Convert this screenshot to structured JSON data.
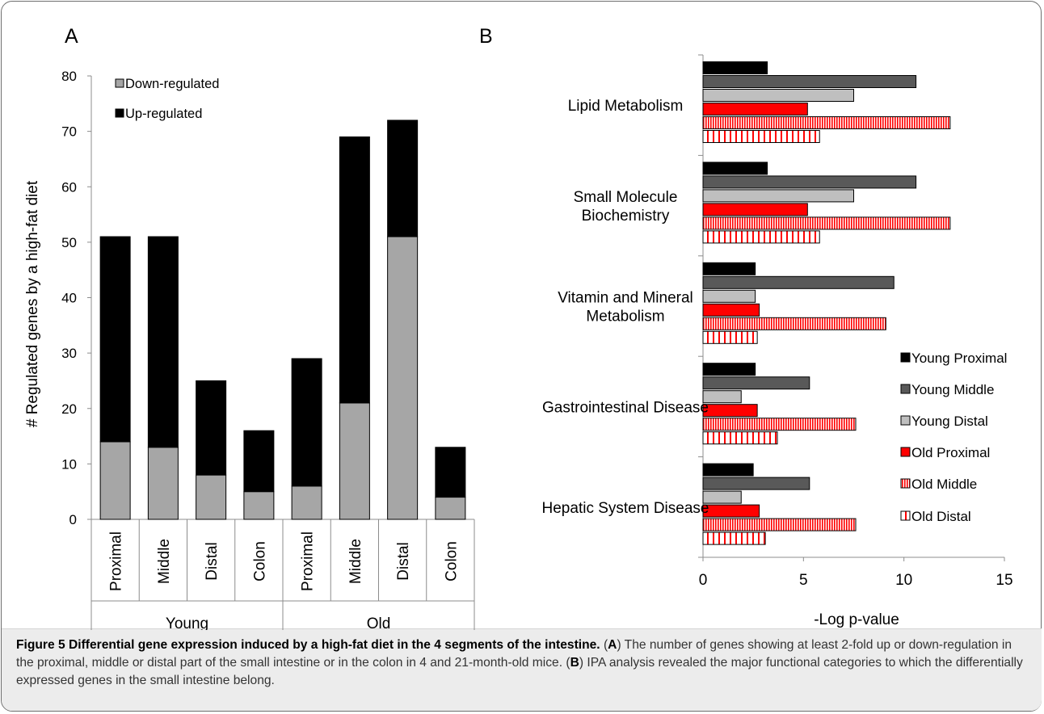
{
  "panels": {
    "a_label": "A",
    "b_label": "B"
  },
  "chart_data": [
    {
      "type": "bar",
      "stacked": true,
      "categories": [
        "Proximal",
        "Middle",
        "Distal",
        "Colon",
        "Proximal",
        "Middle",
        "Distal",
        "Colon"
      ],
      "groups": [
        {
          "label": "Young",
          "categories": [
            "Proximal",
            "Middle",
            "Distal",
            "Colon"
          ]
        },
        {
          "label": "Old",
          "categories": [
            "Proximal",
            "Middle",
            "Distal",
            "Colon"
          ]
        }
      ],
      "series": [
        {
          "name": "Down-regulated",
          "color": "#a6a6a6",
          "values": [
            14,
            13,
            8,
            5,
            6,
            21,
            51,
            4
          ]
        },
        {
          "name": "Up-regulated",
          "color": "#000000",
          "values": [
            37,
            38,
            17,
            11,
            23,
            48,
            21,
            9
          ]
        }
      ],
      "totals": [
        51,
        51,
        25,
        16,
        29,
        69,
        72,
        13
      ],
      "ylabel": "# Regulated genes by a high-fat diet",
      "xlabel": "",
      "ylim": [
        0,
        80
      ],
      "yticks": [
        0,
        10,
        20,
        30,
        40,
        50,
        60,
        70,
        80
      ],
      "grid": false,
      "legend_position": "top-left"
    },
    {
      "type": "bar",
      "orientation": "horizontal",
      "categories": [
        "Lipid Metabolism",
        "Small Molecule Biochemistry",
        "Vitamin and Mineral Metabolism",
        "Gastrointestinal Disease",
        "Hepatic System Disease"
      ],
      "category_lines": [
        [
          "Lipid Metabolism"
        ],
        [
          "Small Molecule",
          "Biochemistry"
        ],
        [
          "Vitamin and Mineral",
          "Metabolism"
        ],
        [
          "Gastrointestinal Disease"
        ],
        [
          "Hepatic System Disease"
        ]
      ],
      "series": [
        {
          "name": "Young Proximal",
          "color": "#000000",
          "pattern": "solid",
          "values": [
            3.2,
            3.2,
            2.6,
            2.6,
            2.5
          ]
        },
        {
          "name": "Young Middle",
          "color": "#595959",
          "pattern": "solid",
          "values": [
            10.6,
            10.6,
            9.5,
            5.3,
            5.3
          ]
        },
        {
          "name": "Young Distal",
          "color": "#bfbfbf",
          "pattern": "solid",
          "values": [
            7.5,
            7.5,
            2.6,
            1.9,
            1.9
          ]
        },
        {
          "name": "Old Proximal",
          "color": "#ff0000",
          "pattern": "solid",
          "values": [
            5.2,
            5.2,
            2.8,
            2.7,
            2.8
          ]
        },
        {
          "name": "Old Middle",
          "color": "#ff0000",
          "pattern": "vertical-stripes-dense",
          "values": [
            12.3,
            12.3,
            9.1,
            7.6,
            7.6
          ]
        },
        {
          "name": "Old Distal",
          "color": "#ff0000",
          "pattern": "vertical-stripes-sparse",
          "values": [
            5.8,
            5.8,
            2.7,
            3.7,
            3.1
          ]
        }
      ],
      "xlabel": "-Log p-value",
      "ylabel": "",
      "xlim": [
        0,
        15
      ],
      "xticks": [
        0,
        5,
        10,
        15
      ],
      "grid": false,
      "legend_position": "bottom-right"
    }
  ],
  "caption": {
    "title": "Figure 5 Differential gene expression induced by a high-fat diet in the 4 segments of the intestine.",
    "text_1": " (",
    "a_ref": "A",
    "text_2": ") The number of genes showing at least 2-fold up or down-regulation in the proximal, middle or distal part of the small intestine or in the colon in 4 and 21-month-old mice. (",
    "b_ref": "B",
    "text_3": ") IPA analysis revealed the major functional categories to which the differentially expressed genes in the small intestine belong."
  }
}
